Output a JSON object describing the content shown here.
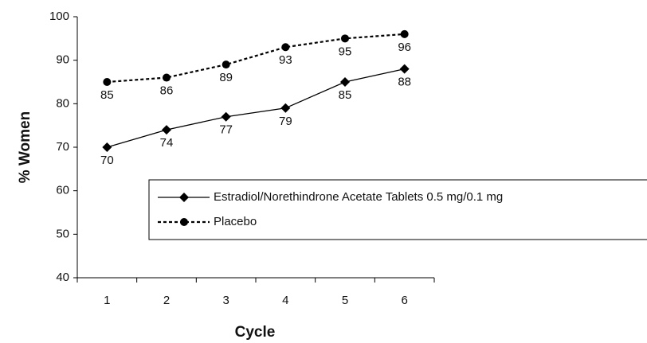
{
  "chart_data": {
    "type": "line",
    "x_label": "Cycle",
    "y_label": "% Women",
    "categories": [
      "1",
      "2",
      "3",
      "4",
      "5",
      "6"
    ],
    "series": [
      {
        "name": "Estradiol/Norethindrone Acetate Tablets  0.5 mg/0.1 mg",
        "color": "#000000",
        "marker": "diamond",
        "dash": "solid",
        "values": [
          70,
          74,
          77,
          79,
          85,
          88
        ]
      },
      {
        "name": "Placebo",
        "color": "#000000",
        "marker": "circle",
        "dash": "dashed",
        "values": [
          85,
          86,
          89,
          93,
          95,
          96
        ]
      }
    ],
    "ylim": [
      40,
      100
    ],
    "yticks": [
      40,
      50,
      60,
      70,
      80,
      90,
      100
    ],
    "grid": false
  }
}
